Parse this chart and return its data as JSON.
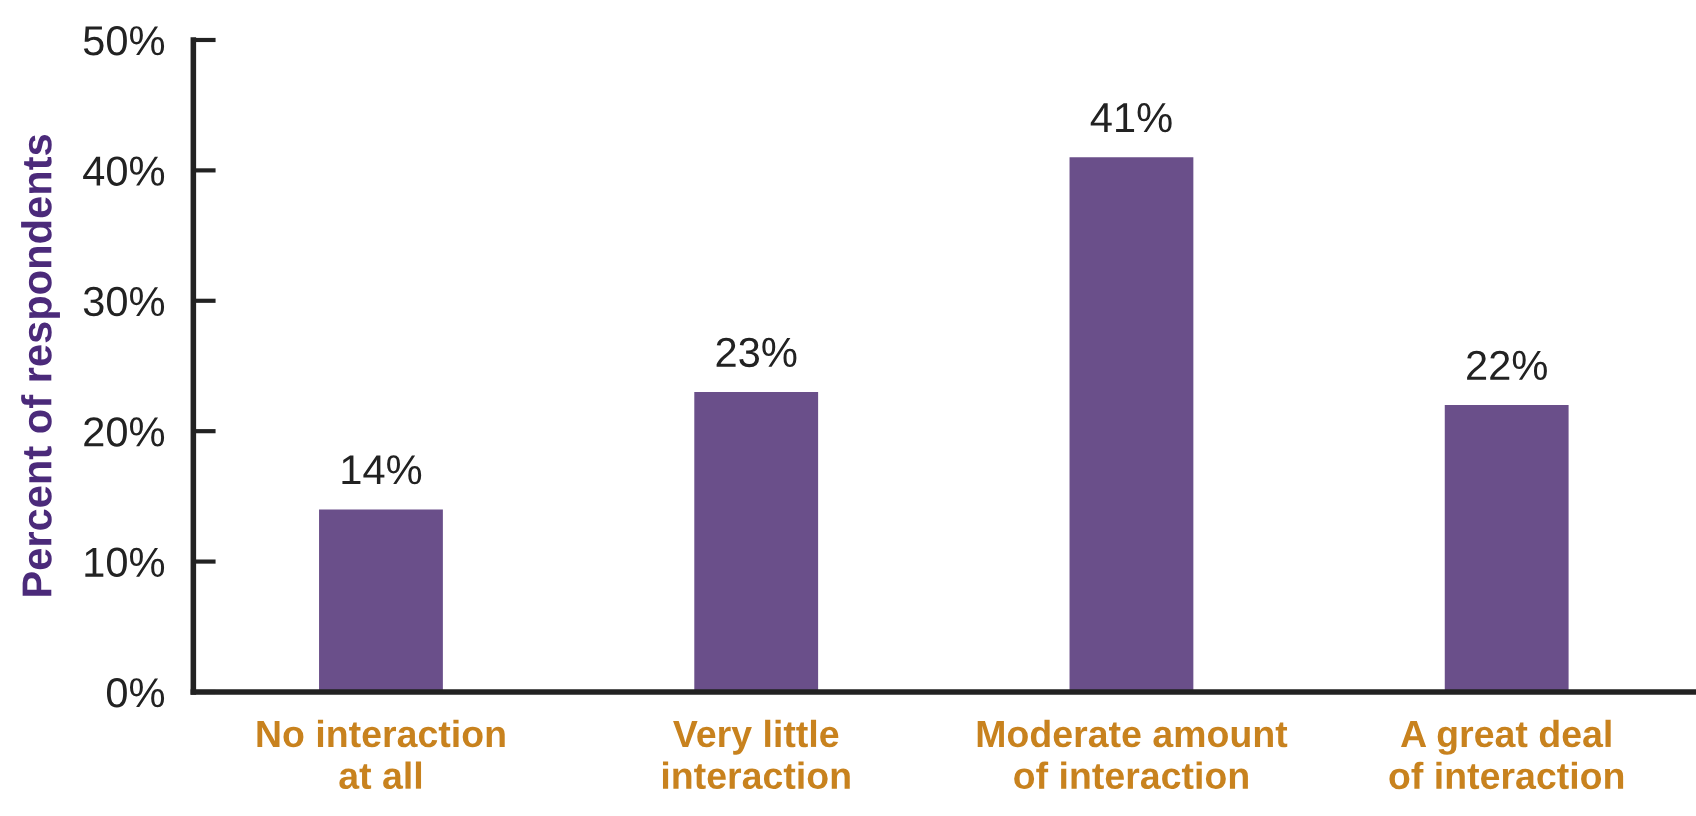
{
  "chart_data": {
    "type": "bar",
    "ylabel": "Percent of respondents",
    "categories": [
      "No interaction\nat all",
      "Very little\ninteraction",
      "Moderate amount\nof interaction",
      "A great deal\nof interaction"
    ],
    "values": [
      14,
      23,
      41,
      22
    ],
    "color": "#6a4f8a",
    "value_labels": [
      "14%",
      "23%",
      "41%",
      "22%"
    ],
    "ylim": [
      0,
      50
    ],
    "yticks": [
      {
        "value": 0,
        "label": "0%"
      },
      {
        "value": 10,
        "label": "10%"
      },
      {
        "value": 20,
        "label": "20%"
      },
      {
        "value": 30,
        "label": "30%"
      },
      {
        "value": 40,
        "label": "40%"
      },
      {
        "value": 50,
        "label": "50%"
      }
    ],
    "grid": false,
    "legend": false
  }
}
